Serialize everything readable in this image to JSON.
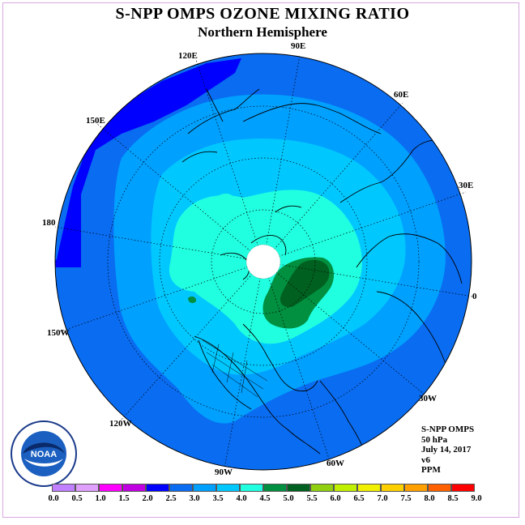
{
  "title": "S-NPP OMPS OZONE MIXING RATIO",
  "subtitle": "Northern Hemisphere",
  "longitude_labels": [
    {
      "id": "lon-90e",
      "text": "90E"
    },
    {
      "id": "lon-60e",
      "text": "60E"
    },
    {
      "id": "lon-30e",
      "text": "30E"
    },
    {
      "id": "lon-0",
      "text": "0"
    },
    {
      "id": "lon-30w",
      "text": "30W"
    },
    {
      "id": "lon-60w",
      "text": "60W"
    },
    {
      "id": "lon-90w",
      "text": "90W"
    },
    {
      "id": "lon-120w",
      "text": "120W"
    },
    {
      "id": "lon-150w",
      "text": "150W"
    },
    {
      "id": "lon-180",
      "text": "180"
    },
    {
      "id": "lon-150e",
      "text": "150E"
    },
    {
      "id": "lon-120e",
      "text": "120E"
    }
  ],
  "info": {
    "instrument": "S-NPP OMPS",
    "pressure_level": "50 hPa",
    "date": "July 14, 2017",
    "version": "v6",
    "units": "PPM"
  },
  "logo_text": "NOAA",
  "colorbar": {
    "labels": [
      "0.0",
      "0.5",
      "1.0",
      "1.5",
      "2.0",
      "2.5",
      "3.0",
      "3.5",
      "4.0",
      "4.5",
      "5.0",
      "5.5",
      "6.0",
      "6.5",
      "7.0",
      "7.5",
      "8.0",
      "8.5",
      "9.0"
    ],
    "colors": [
      "#c080ff",
      "#e0a0ff",
      "#ff00ff",
      "#c000e0",
      "#0000ff",
      "#0a6cf0",
      "#00a0ff",
      "#00c8ff",
      "#20ffe0",
      "#009040",
      "#006020",
      "#90d010",
      "#c0f000",
      "#f0f000",
      "#ffd000",
      "#ffa000",
      "#ff6000",
      "#ff0000",
      "#7a4a2a"
    ]
  },
  "map_colors": {
    "level_2_0": "#0000ff",
    "level_2_5": "#0a6cf0",
    "level_3_0": "#00a0ff",
    "level_3_5": "#00c8ff",
    "level_4_0": "#20ffe0",
    "level_4_5": "#009040",
    "level_5_0": "#006020",
    "pole_no_data": "#ffffff"
  }
}
